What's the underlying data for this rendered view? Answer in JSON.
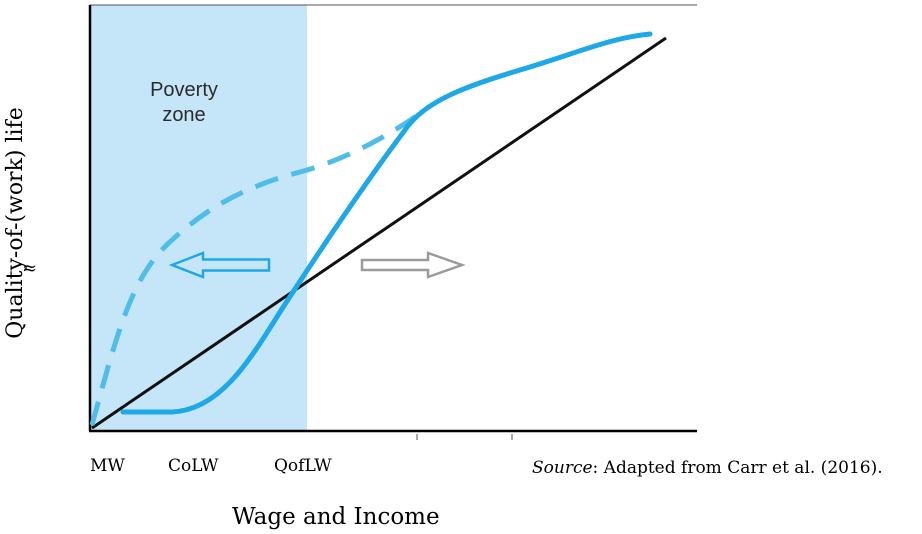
{
  "diagram": {
    "y_axis_label": "Quality-of-(work) life",
    "y_axis_marker": "≈",
    "x_axis_label": "Wage and Income",
    "x_ticks": [
      "MW",
      "CoLW",
      "QofLW"
    ],
    "zone_label_line1": "Poverty",
    "zone_label_line2": "zone",
    "source_prefix": "Source",
    "source_text": ":  Adapted from Carr et al. (2016).",
    "colors": {
      "zone_fill": "#c5e6f8",
      "curve_solid": "#1fa8e8",
      "curve_dashed": "#4fbde9",
      "line_black": "#111111",
      "arrow_left": "#1fa8e8",
      "arrow_right": "#9b9b9b"
    }
  }
}
